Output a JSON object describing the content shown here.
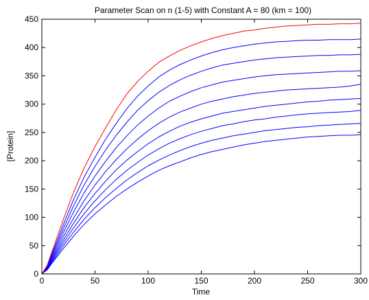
{
  "chart_data": {
    "type": "line",
    "title": "Parameter Scan on n (1-5) with Constant A = 80 (km = 100)",
    "xlabel": "Time",
    "ylabel": "[Protein]",
    "xlim": [
      0,
      300
    ],
    "ylim": [
      0,
      450
    ],
    "xticks": [
      0,
      50,
      100,
      150,
      200,
      250,
      300
    ],
    "yticks": [
      0,
      50,
      100,
      150,
      200,
      250,
      300,
      350,
      400,
      450
    ],
    "grid": false,
    "legend": "none",
    "x": [
      0,
      5,
      10,
      20,
      30,
      40,
      50,
      60,
      70,
      80,
      90,
      100,
      110,
      120,
      130,
      140,
      150,
      160,
      170,
      180,
      190,
      200,
      210,
      220,
      230,
      240,
      250,
      260,
      270,
      280,
      290,
      300
    ],
    "series": [
      {
        "color": "#ff0000",
        "values": [
          0,
          15,
          42,
          95,
          145,
          188,
          225,
          258,
          290,
          318,
          340,
          358,
          374,
          385,
          395,
          403,
          410,
          416,
          421,
          425,
          429,
          431,
          434,
          436,
          438,
          439,
          440,
          441,
          441,
          442,
          442,
          443
        ]
      },
      {
        "color": "#0000ff",
        "values": [
          0,
          14,
          38,
          86,
          132,
          172,
          206,
          238,
          266,
          292,
          314,
          332,
          348,
          360,
          370,
          378,
          385,
          391,
          396,
          400,
          403,
          406,
          408,
          410,
          411,
          412,
          413,
          413,
          414,
          414,
          414,
          415
        ]
      },
      {
        "color": "#0000ff",
        "values": [
          0,
          13,
          35,
          79,
          121,
          158,
          190,
          219,
          245,
          268,
          289,
          306,
          321,
          333,
          343,
          351,
          358,
          364,
          369,
          372,
          375,
          378,
          380,
          382,
          383,
          384,
          385,
          386,
          386,
          387,
          387,
          388
        ]
      },
      {
        "color": "#0000ff",
        "values": [
          0,
          12,
          32,
          72,
          110,
          144,
          173,
          199,
          223,
          244,
          263,
          279,
          293,
          305,
          314,
          322,
          329,
          334,
          339,
          342,
          345,
          348,
          350,
          352,
          353,
          354,
          355,
          356,
          357,
          358,
          358,
          359
        ]
      },
      {
        "color": "#0000ff",
        "values": [
          0,
          11,
          29,
          65,
          99,
          130,
          157,
          181,
          202,
          221,
          238,
          253,
          266,
          277,
          286,
          293,
          300,
          305,
          309,
          313,
          316,
          319,
          321,
          323,
          325,
          326,
          327,
          328,
          329,
          330,
          332,
          335
        ]
      },
      {
        "color": "#0000ff",
        "values": [
          0,
          10,
          27,
          59,
          90,
          118,
          142,
          164,
          184,
          201,
          216,
          230,
          242,
          252,
          261,
          268,
          274,
          279,
          284,
          287,
          290,
          293,
          296,
          298,
          300,
          302,
          304,
          305,
          307,
          308,
          309,
          310
        ]
      },
      {
        "color": "#0000ff",
        "values": [
          0,
          9,
          24,
          54,
          82,
          107,
          129,
          149,
          167,
          183,
          197,
          210,
          221,
          231,
          239,
          246,
          252,
          257,
          262,
          265,
          269,
          272,
          274,
          277,
          279,
          281,
          283,
          284,
          285,
          286,
          287,
          289
        ]
      },
      {
        "color": "#0000ff",
        "values": [
          0,
          8,
          22,
          49,
          74,
          97,
          117,
          135,
          151,
          166,
          179,
          191,
          201,
          210,
          218,
          225,
          231,
          236,
          240,
          244,
          247,
          250,
          253,
          255,
          257,
          259,
          260,
          262,
          263,
          264,
          265,
          266
        ]
      },
      {
        "color": "#0000ff",
        "values": [
          0,
          7,
          20,
          44,
          67,
          88,
          106,
          122,
          137,
          150,
          162,
          173,
          183,
          191,
          198,
          205,
          211,
          216,
          220,
          224,
          228,
          231,
          234,
          236,
          238,
          240,
          242,
          243,
          244,
          245,
          245,
          246
        ]
      }
    ]
  }
}
